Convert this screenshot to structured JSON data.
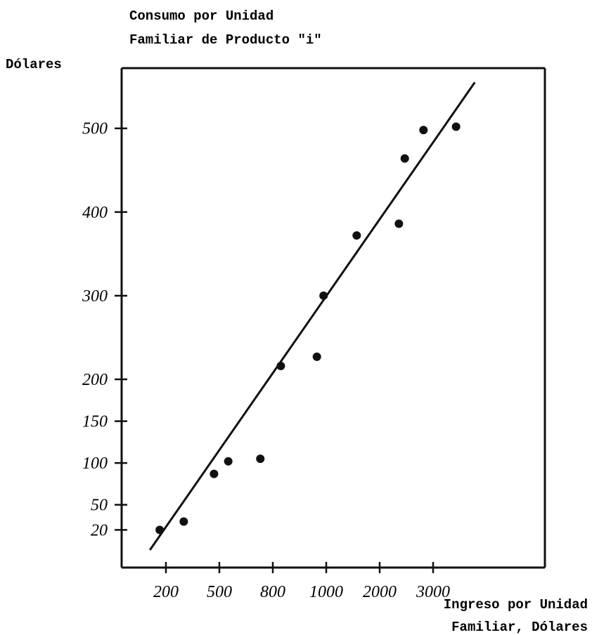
{
  "chart_data": {
    "type": "scatter",
    "title": [
      "Consumo por Unidad",
      "Familiar de Producto \"i\""
    ],
    "ylabel": "Dólares",
    "xlabel": [
      "Ingreso por Unidad",
      "Familiar, Dólares"
    ],
    "x": [
      165,
      300,
      470,
      550,
      730,
      830,
      965,
      990,
      1570,
      2360,
      2470,
      2820,
      3430
    ],
    "values": [
      20,
      30,
      87,
      102,
      105,
      216,
      227,
      300,
      372,
      386,
      464,
      498,
      502
    ],
    "color": "#111111",
    "trend_line": {
      "x": [
        110,
        3780
      ],
      "y": [
        -4,
        555
      ]
    },
    "xlim": [
      -50,
      5090
    ],
    "ylim": [
      -25,
      572
    ],
    "xticks": [
      200,
      500,
      800,
      1000,
      2000,
      3000
    ],
    "yticks": [
      500,
      400,
      300,
      200,
      150,
      100,
      50,
      20
    ]
  }
}
